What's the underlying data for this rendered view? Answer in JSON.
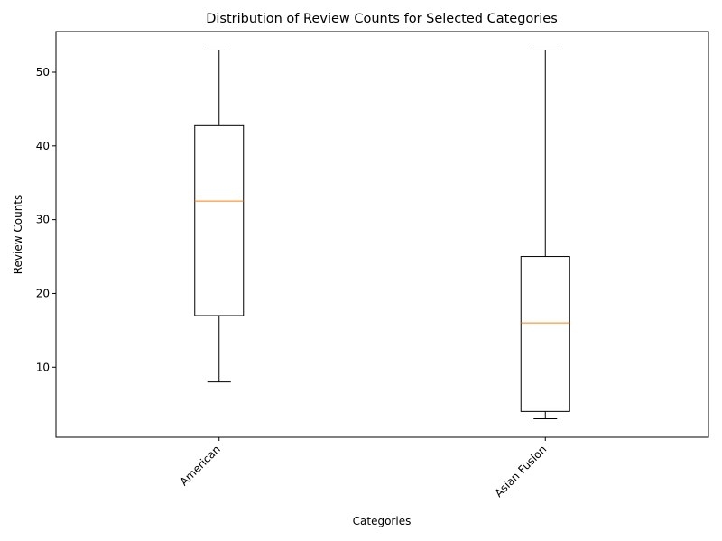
{
  "chart_data": {
    "type": "box",
    "title": "Distribution of Review Counts for Selected Categories",
    "xlabel": "Categories",
    "ylabel": "Review Counts",
    "categories": [
      "American",
      "Asian Fusion"
    ],
    "boxes": [
      {
        "category": "American",
        "whisker_low": 8,
        "q1": 17,
        "median": 32.5,
        "q3": 42.75,
        "whisker_high": 53
      },
      {
        "category": "Asian Fusion",
        "whisker_low": 3,
        "q1": 4,
        "median": 16,
        "q3": 25,
        "whisker_high": 53
      }
    ],
    "ylim": [
      0.5,
      55.5
    ],
    "yticks": [
      10,
      20,
      30,
      40,
      50
    ],
    "grid": false,
    "colors": {
      "box": "#000000",
      "median": "#ff7f0e"
    }
  }
}
